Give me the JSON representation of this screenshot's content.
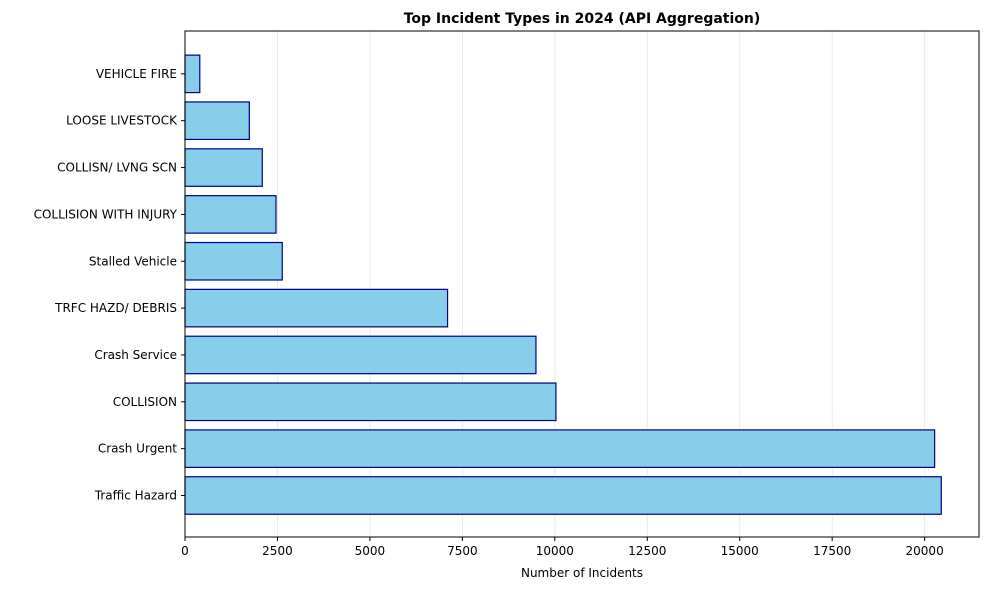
{
  "chart_data": {
    "type": "bar",
    "orientation": "horizontal",
    "title": "Top Incident Types in 2024 (API Aggregation)",
    "xlabel": "Number of Incidents",
    "ylabel": "",
    "categories": [
      "Traffic Hazard",
      "Crash Urgent",
      "COLLISION",
      "Crash Service",
      "TRFC HAZD/ DEBRIS",
      "Stalled Vehicle",
      "COLLISION WITH INJURY",
      "COLLISN/ LVNG SCN",
      "LOOSE LIVESTOCK",
      "VEHICLE FIRE"
    ],
    "values": [
      20450,
      20270,
      10030,
      9490,
      7100,
      2630,
      2460,
      2090,
      1740,
      400
    ],
    "xlim": [
      0,
      21470
    ],
    "xticks": [
      0,
      2500,
      5000,
      7500,
      10000,
      12500,
      15000,
      17500,
      20000
    ],
    "xtick_labels": [
      "0",
      "2500",
      "5000",
      "7500",
      "10000",
      "12500",
      "15000",
      "17500",
      "20000"
    ],
    "grid": "x",
    "legend": "none",
    "colors": {
      "bar_fill": "#87ceeb",
      "bar_edge": "#000080",
      "grid": "#e6e6e6",
      "axis": "#000000"
    }
  }
}
